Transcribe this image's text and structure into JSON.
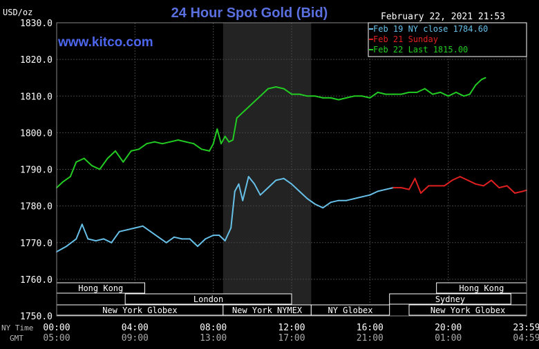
{
  "chart_data": {
    "type": "line",
    "title": "24 Hour Spot Gold (Bid)",
    "watermark": "www.kitco.com",
    "ylabel": "USD/oz",
    "timestamp": "February 22, 2021 21:53",
    "ylim": [
      1750,
      1830
    ],
    "yticks": [
      "1830.0",
      "1820.0",
      "1810.0",
      "1800.0",
      "1790.0",
      "1780.0",
      "1770.0",
      "1760.0",
      "1750.0"
    ],
    "xlim": [
      0,
      24
    ],
    "x_row_label": "NY Time",
    "gmt_row_label": "GMT",
    "x_ticks_ny": [
      "00:00",
      "04:00",
      "08:00",
      "12:00",
      "16:00",
      "20:00",
      "23:59"
    ],
    "x_ticks_gmt": [
      "05:00",
      "09:00",
      "13:00",
      "17:00",
      "21:00",
      "01:00",
      "04:59"
    ],
    "x_tick_values": [
      0,
      4,
      8,
      12,
      16,
      20,
      24
    ],
    "shaded_range": [
      8.5,
      13
    ],
    "legend": [
      {
        "label": "Feb 19 NY close 1784.60",
        "color": "#66c0e8"
      },
      {
        "label": "Feb 21 Sunday",
        "color": "#e02020"
      },
      {
        "label": "Feb 22 Last 1815.00",
        "color": "#22cc22"
      }
    ],
    "sessions": [
      {
        "label": "Hong Kong",
        "start": 0,
        "end": 4.5,
        "row": 0
      },
      {
        "label": "Hong Kong",
        "start": 19.4,
        "end": 24,
        "row": 0
      },
      {
        "label": "London",
        "start": 3.5,
        "end": 12,
        "row": 1
      },
      {
        "label": "Sydney",
        "start": 17,
        "end": 23.2,
        "row": 1
      },
      {
        "label": "New York Globex",
        "start": 0,
        "end": 8.5,
        "row": 2
      },
      {
        "label": "New York NYMEX",
        "start": 8.5,
        "end": 13,
        "row": 2
      },
      {
        "label": "NY Globex",
        "start": 13,
        "end": 17,
        "row": 2
      },
      {
        "label": "New York Globex",
        "start": 18,
        "end": 24,
        "row": 2
      }
    ],
    "series": [
      {
        "name": "Feb 19",
        "color": "#66c0e8",
        "x": [
          0,
          0.5,
          1.0,
          1.3,
          1.6,
          2.0,
          2.4,
          2.8,
          3.2,
          3.6,
          4.0,
          4.4,
          4.8,
          5.2,
          5.6,
          6.0,
          6.4,
          6.8,
          7.2,
          7.6,
          8.0,
          8.3,
          8.6,
          8.9,
          9.1,
          9.3,
          9.5,
          9.8,
          10.1,
          10.4,
          10.8,
          11.2,
          11.6,
          12.0,
          12.4,
          12.8,
          13.2,
          13.6,
          14.0,
          14.4,
          14.8,
          15.2,
          15.6,
          16.0,
          16.4,
          16.8,
          17.2
        ],
        "values": [
          1767.5,
          1769,
          1771,
          1775,
          1771,
          1770.5,
          1771,
          1770,
          1773,
          1773.5,
          1774,
          1774.5,
          1773,
          1771.5,
          1770,
          1771.5,
          1771,
          1771,
          1769,
          1771,
          1772,
          1772,
          1770.5,
          1774,
          1784,
          1786,
          1781.5,
          1788,
          1786,
          1783,
          1785,
          1787,
          1787.5,
          1786,
          1784,
          1782,
          1780.5,
          1779.5,
          1781,
          1781.5,
          1781.5,
          1782,
          1782.5,
          1783,
          1784,
          1784.5,
          1785
        ]
      },
      {
        "name": "Feb 21",
        "color": "#e02020",
        "x": [
          17.2,
          17.6,
          18.0,
          18.3,
          18.6,
          19.0,
          19.4,
          19.8,
          20.2,
          20.6,
          21.0,
          21.4,
          21.8,
          22.2,
          22.6,
          23.0,
          23.4,
          23.8,
          24.0
        ],
        "values": [
          1785,
          1785,
          1784.5,
          1787.5,
          1783.5,
          1785.5,
          1785.5,
          1785.5,
          1787,
          1788,
          1787,
          1786,
          1785.5,
          1787,
          1785,
          1785.5,
          1783.5,
          1784,
          1784.3
        ]
      },
      {
        "name": "Feb 22",
        "color": "#22cc22",
        "x": [
          0,
          0.3,
          0.7,
          1.0,
          1.4,
          1.8,
          2.2,
          2.6,
          3.0,
          3.4,
          3.8,
          4.2,
          4.6,
          5.0,
          5.4,
          5.8,
          6.2,
          6.6,
          7.0,
          7.4,
          7.8,
          8.0,
          8.2,
          8.4,
          8.6,
          8.8,
          9.0,
          9.2,
          9.4,
          9.6,
          9.8,
          10.1,
          10.4,
          10.8,
          11.2,
          11.6,
          12.0,
          12.4,
          12.8,
          13.2,
          13.6,
          14.0,
          14.4,
          14.8,
          15.2,
          15.6,
          16.0,
          16.4,
          16.8,
          17.2,
          17.6,
          18.0,
          18.4,
          18.8,
          19.2,
          19.6,
          20.0,
          20.4,
          20.8,
          21.1,
          21.4,
          21.7,
          21.9
        ],
        "values": [
          1785,
          1786.5,
          1788,
          1792,
          1793,
          1791,
          1790,
          1793,
          1795,
          1792,
          1795,
          1795.5,
          1797,
          1797.5,
          1797,
          1797.5,
          1798,
          1797.5,
          1797,
          1795.5,
          1795,
          1797,
          1801,
          1797,
          1799,
          1797.5,
          1798,
          1804,
          1805,
          1806,
          1807,
          1808.5,
          1810,
          1812,
          1812.5,
          1812,
          1810.5,
          1810.5,
          1810,
          1810,
          1809.5,
          1809.5,
          1809,
          1809.5,
          1810,
          1810,
          1809.5,
          1811,
          1810.5,
          1810.5,
          1810.5,
          1811,
          1811,
          1812,
          1810.5,
          1811,
          1810,
          1811,
          1810,
          1810.5,
          1813,
          1814.5,
          1815
        ]
      }
    ]
  }
}
